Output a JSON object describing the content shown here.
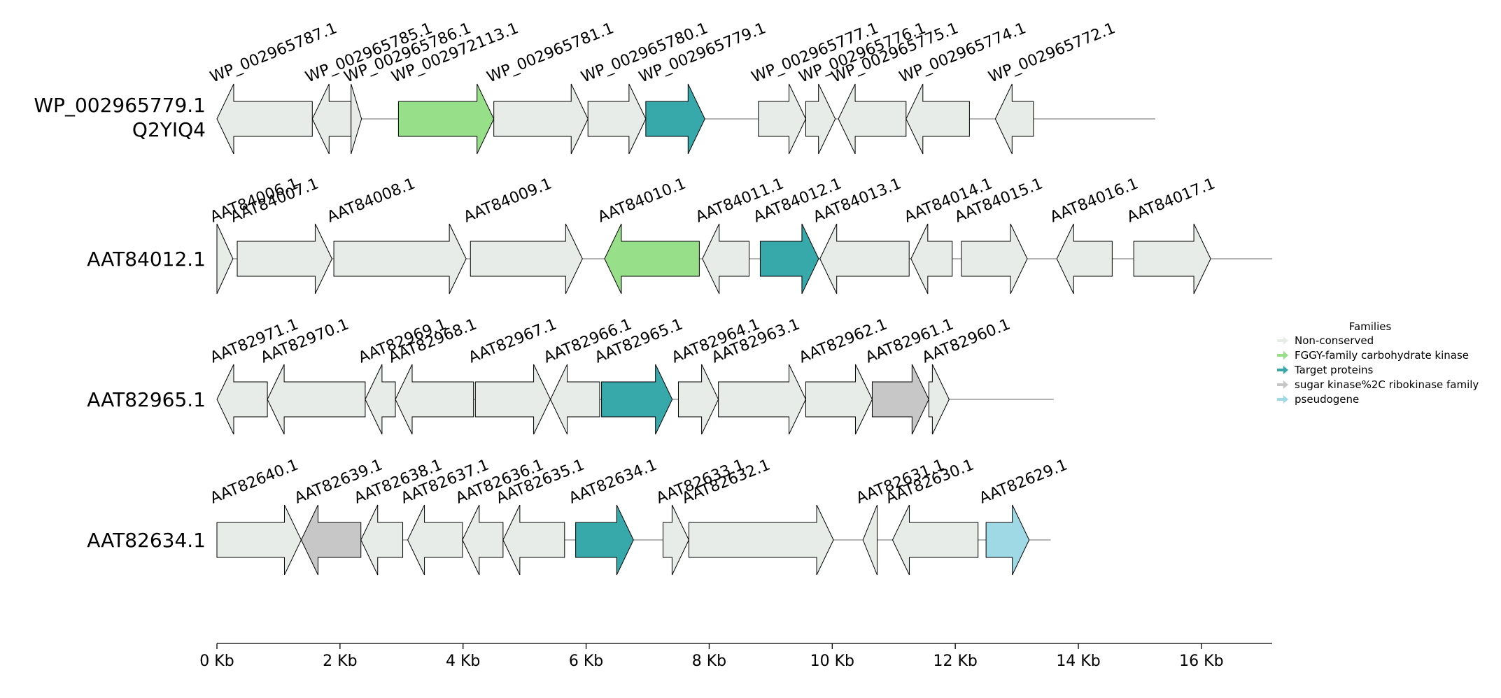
{
  "colors": {
    "Non-conserved": "#e8ece9",
    "FGGY-family carbohydrate kinase": "#98df8a",
    "Target proteins": "#37a9ab",
    "sugar kinase%2C ribokinase family": "#c7c7c7",
    "pseudogene": "#9ed9e5"
  },
  "legend": {
    "title": "Families",
    "entries": [
      "Non-conserved",
      "FGGY-family carbohydrate kinase",
      "Target proteins",
      "sugar kinase%2C ribokinase family",
      "pseudogene"
    ]
  },
  "axis": {
    "unit": "Kb",
    "range_kb": [
      0,
      17.15
    ],
    "ticks": [
      {
        "value": 0,
        "label": "0 Kb"
      },
      {
        "value": 2,
        "label": "2 Kb"
      },
      {
        "value": 4,
        "label": "4 Kb"
      },
      {
        "value": 6,
        "label": "6 Kb"
      },
      {
        "value": 8,
        "label": "8 Kb"
      },
      {
        "value": 10,
        "label": "10 Kb"
      },
      {
        "value": 12,
        "label": "12 Kb"
      },
      {
        "value": 14,
        "label": "14 Kb"
      },
      {
        "value": 16,
        "label": "16 Kb"
      }
    ]
  },
  "loci": [
    {
      "label_lines": [
        "WP_002965779.1",
        "Q2YIQ4"
      ],
      "end_kb": 15.25,
      "genes": [
        {
          "id": "WP_002965787.1",
          "start": 0.0,
          "end": 1.55,
          "strand": -1,
          "family": "Non-conserved"
        },
        {
          "id": "WP_002965785.1",
          "start": 1.55,
          "end": 2.18,
          "strand": -1,
          "family": "Non-conserved"
        },
        {
          "id": "WP_002965786.1",
          "start": 2.18,
          "end": 2.35,
          "strand": 1,
          "family": "Non-conserved"
        },
        {
          "id": "WP_002972113.1",
          "start": 2.95,
          "end": 4.5,
          "strand": 1,
          "family": "FGGY-family carbohydrate kinase"
        },
        {
          "id": "WP_002965781.1",
          "start": 4.5,
          "end": 6.03,
          "strand": 1,
          "family": "Non-conserved"
        },
        {
          "id": "WP_002965780.1",
          "start": 6.03,
          "end": 6.97,
          "strand": 1,
          "family": "Non-conserved"
        },
        {
          "id": "WP_002965779.1",
          "start": 6.97,
          "end": 7.93,
          "strand": 1,
          "family": "Target proteins"
        },
        {
          "id": "WP_002965777.1",
          "start": 8.8,
          "end": 9.57,
          "strand": 1,
          "family": "Non-conserved"
        },
        {
          "id": "WP_002965776.1",
          "start": 9.57,
          "end": 10.05,
          "strand": 1,
          "family": "Non-conserved"
        },
        {
          "id": "WP_002965775.1",
          "start": 10.1,
          "end": 11.2,
          "strand": -1,
          "family": "Non-conserved"
        },
        {
          "id": "WP_002965774.1",
          "start": 11.2,
          "end": 12.23,
          "strand": -1,
          "family": "Non-conserved"
        },
        {
          "id": "WP_002965772.1",
          "start": 12.65,
          "end": 13.27,
          "strand": -1,
          "family": "Non-conserved"
        }
      ]
    },
    {
      "label_lines": [
        "AAT84012.1"
      ],
      "end_kb": 17.15,
      "genes": [
        {
          "id": "AAT84006.1",
          "start": 0.0,
          "end": 0.26,
          "strand": 1,
          "family": "Non-conserved"
        },
        {
          "id": "AAT84007.1",
          "start": 0.33,
          "end": 1.87,
          "strand": 1,
          "family": "Non-conserved"
        },
        {
          "id": "AAT84008.1",
          "start": 1.9,
          "end": 4.05,
          "strand": 1,
          "family": "Non-conserved"
        },
        {
          "id": "AAT84009.1",
          "start": 4.12,
          "end": 5.94,
          "strand": 1,
          "family": "Non-conserved"
        },
        {
          "id": "AAT84010.1",
          "start": 6.3,
          "end": 7.84,
          "strand": -1,
          "family": "FGGY-family carbohydrate kinase"
        },
        {
          "id": "AAT84011.1",
          "start": 7.89,
          "end": 8.65,
          "strand": -1,
          "family": "Non-conserved"
        },
        {
          "id": "AAT84012.1",
          "start": 8.83,
          "end": 9.78,
          "strand": 1,
          "family": "Target proteins"
        },
        {
          "id": "AAT84013.1",
          "start": 9.8,
          "end": 11.25,
          "strand": -1,
          "family": "Non-conserved"
        },
        {
          "id": "AAT84014.1",
          "start": 11.28,
          "end": 11.95,
          "strand": -1,
          "family": "Non-conserved"
        },
        {
          "id": "AAT84015.1",
          "start": 12.1,
          "end": 13.17,
          "strand": 1,
          "family": "Non-conserved"
        },
        {
          "id": "AAT84016.1",
          "start": 13.65,
          "end": 14.55,
          "strand": -1,
          "family": "Non-conserved"
        },
        {
          "id": "AAT84017.1",
          "start": 14.9,
          "end": 16.15,
          "strand": 1,
          "family": "Non-conserved"
        }
      ]
    },
    {
      "label_lines": [
        "AAT82965.1"
      ],
      "end_kb": 13.6,
      "genes": [
        {
          "id": "AAT82971.1",
          "start": 0.0,
          "end": 0.82,
          "strand": -1,
          "family": "Non-conserved"
        },
        {
          "id": "AAT82970.1",
          "start": 0.82,
          "end": 2.41,
          "strand": -1,
          "family": "Non-conserved"
        },
        {
          "id": "AAT82969.1",
          "start": 2.41,
          "end": 2.9,
          "strand": -1,
          "family": "Non-conserved"
        },
        {
          "id": "AAT82968.1",
          "start": 2.9,
          "end": 4.17,
          "strand": -1,
          "family": "Non-conserved"
        },
        {
          "id": "AAT82967.1",
          "start": 4.2,
          "end": 5.42,
          "strand": 1,
          "family": "Non-conserved"
        },
        {
          "id": "AAT82966.1",
          "start": 5.42,
          "end": 6.22,
          "strand": -1,
          "family": "Non-conserved"
        },
        {
          "id": "AAT82965.1",
          "start": 6.25,
          "end": 7.4,
          "strand": 1,
          "family": "Target proteins"
        },
        {
          "id": "AAT82964.1",
          "start": 7.5,
          "end": 8.15,
          "strand": 1,
          "family": "Non-conserved"
        },
        {
          "id": "AAT82963.1",
          "start": 8.15,
          "end": 9.57,
          "strand": 1,
          "family": "Non-conserved"
        },
        {
          "id": "AAT82962.1",
          "start": 9.57,
          "end": 10.65,
          "strand": 1,
          "family": "Non-conserved"
        },
        {
          "id": "AAT82961.1",
          "start": 10.65,
          "end": 11.57,
          "strand": 1,
          "family": "sugar kinase%2C ribokinase family"
        },
        {
          "id": "AAT82960.1",
          "start": 11.57,
          "end": 11.9,
          "strand": 1,
          "family": "Non-conserved"
        }
      ]
    },
    {
      "label_lines": [
        "AAT82634.1"
      ],
      "end_kb": 13.55,
      "genes": [
        {
          "id": "AAT82640.1",
          "start": 0.0,
          "end": 1.37,
          "strand": 1,
          "family": "Non-conserved"
        },
        {
          "id": "AAT82639.1",
          "start": 1.37,
          "end": 2.34,
          "strand": -1,
          "family": "sugar kinase%2C ribokinase family"
        },
        {
          "id": "AAT82638.1",
          "start": 2.34,
          "end": 3.02,
          "strand": -1,
          "family": "Non-conserved"
        },
        {
          "id": "AAT82637.1",
          "start": 3.1,
          "end": 3.99,
          "strand": -1,
          "family": "Non-conserved"
        },
        {
          "id": "AAT82636.1",
          "start": 3.99,
          "end": 4.65,
          "strand": -1,
          "family": "Non-conserved"
        },
        {
          "id": "AAT82635.1",
          "start": 4.65,
          "end": 5.65,
          "strand": -1,
          "family": "Non-conserved"
        },
        {
          "id": "AAT82634.1",
          "start": 5.83,
          "end": 6.77,
          "strand": 1,
          "family": "Target proteins"
        },
        {
          "id": "AAT82633.1",
          "start": 7.25,
          "end": 7.67,
          "strand": 1,
          "family": "Non-conserved"
        },
        {
          "id": "AAT82632.1",
          "start": 7.67,
          "end": 10.02,
          "strand": 1,
          "family": "Non-conserved"
        },
        {
          "id": "AAT82631.1",
          "start": 10.5,
          "end": 10.73,
          "strand": -1,
          "family": "Non-conserved"
        },
        {
          "id": "AAT82630.1",
          "start": 10.98,
          "end": 12.37,
          "strand": -1,
          "family": "Non-conserved"
        },
        {
          "id": "AAT82629.1",
          "start": 12.5,
          "end": 13.2,
          "strand": 1,
          "family": "pseudogene"
        }
      ]
    }
  ]
}
